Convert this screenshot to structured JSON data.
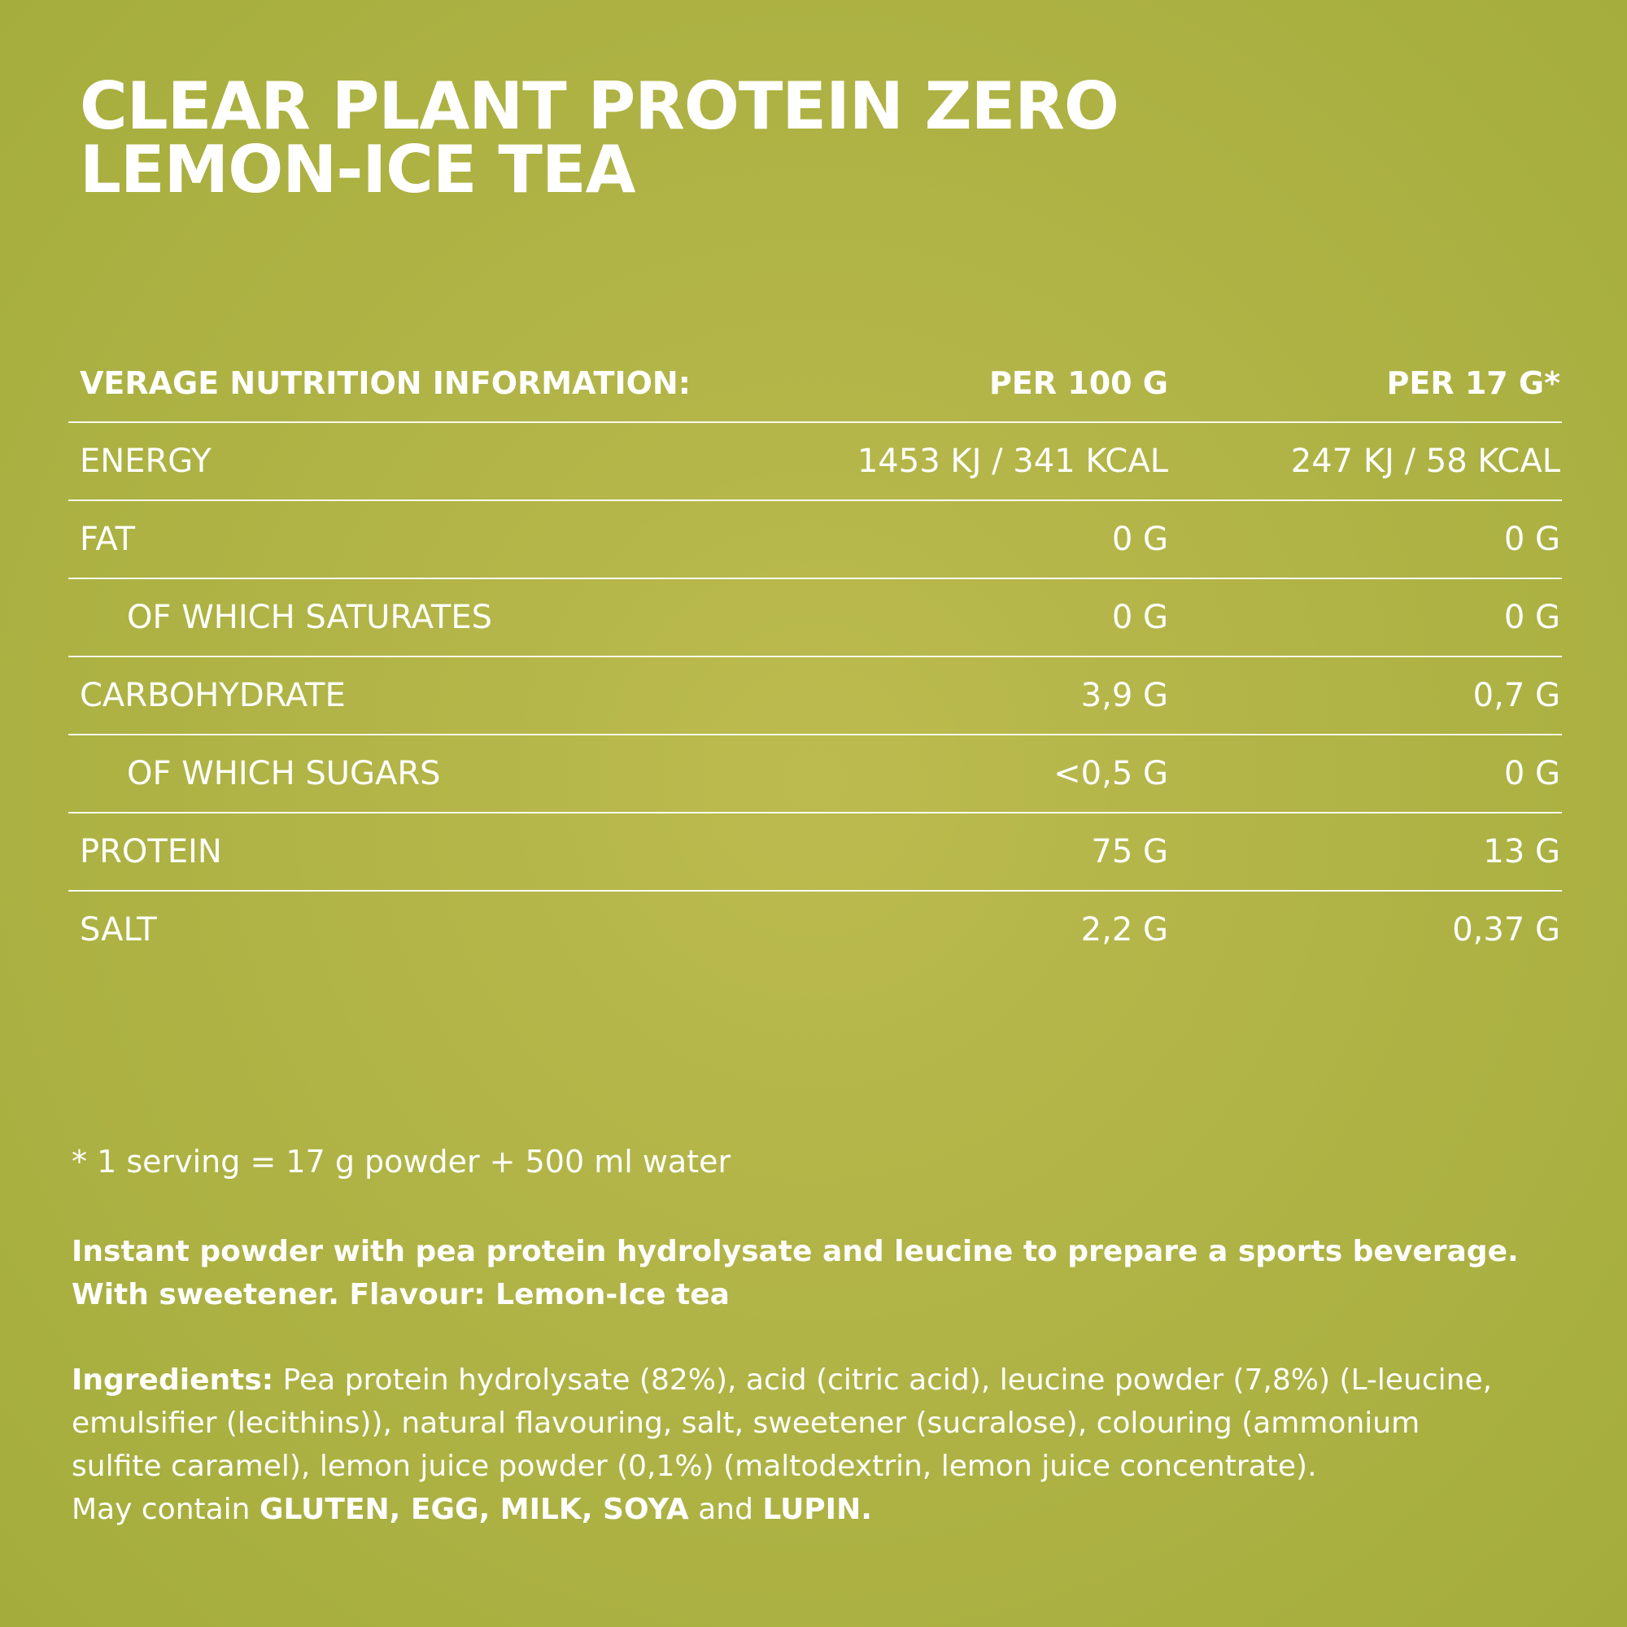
{
  "title": {
    "line1": "CLEAR PLANT PROTEIN ZERO",
    "line2": "LEMON-ICE TEA"
  },
  "table": {
    "header": {
      "label": "VERAGE NUTRITION INFORMATION:",
      "col1": "PER 100 G",
      "col2": "PER 17 G*"
    },
    "rows": [
      {
        "label": "ENERGY",
        "per100": "1453 KJ / 341 KCAL",
        "perServing": "247 KJ / 58 KCAL"
      },
      {
        "label": "FAT",
        "per100": "0 G",
        "perServing": "0 G"
      },
      {
        "label": "OF WHICH SATURATES",
        "per100": "0 G",
        "perServing": "0 G"
      },
      {
        "label": "CARBOHYDRATE",
        "per100": "3,9 G",
        "perServing": "0,7 G"
      },
      {
        "label": "OF WHICH SUGARS",
        "per100": "<0,5 G",
        "perServing": "0 G"
      },
      {
        "label": "PROTEIN",
        "per100": "75 G",
        "perServing": "13 G"
      },
      {
        "label": "SALT",
        "per100": "2,2 G",
        "perServing": "0,37 G"
      }
    ]
  },
  "footnote": "* 1 serving = 17 g powder + 500 ml water",
  "description": {
    "line1": "Instant powder with pea protein hydrolysate and leucine to prepare a sports beverage.",
    "line2": "With sweetener. Flavour: Lemon-Ice tea"
  },
  "ingredients": {
    "label": "Ingredients:",
    "line1": " Pea protein hydrolysate (82%), acid (citric acid), leucine powder (7,8%) (L-leucine,",
    "line2": "emulsifier (lecithins)), natural flavouring, salt, sweetener (sucralose), colouring (ammonium",
    "line3": "sulfite caramel), lemon juice powder (0,1%) (maltodextrin, lemon juice concentrate).",
    "may_contain": "May contain ",
    "allergens1": "GLUTEN, EGG, MILK, SOYA",
    "and": " and ",
    "allergens2": "LUPIN."
  }
}
